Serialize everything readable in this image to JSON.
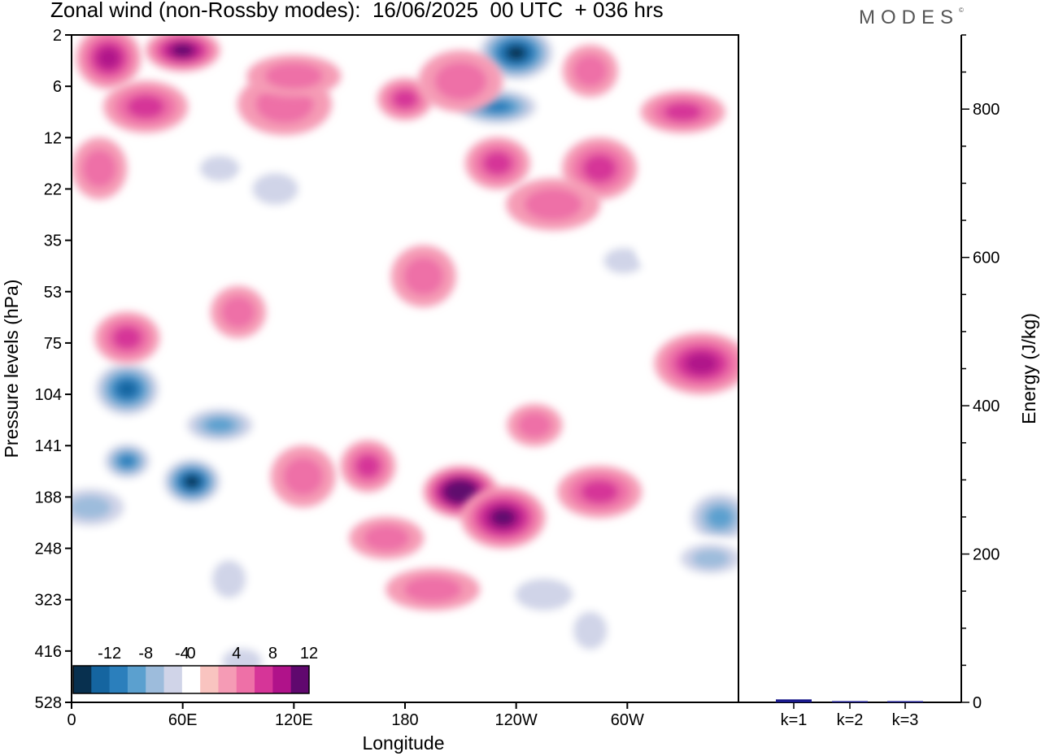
{
  "header": {
    "title": "Zonal wind (non-Rossby modes):  16/06/2025  00 UTC  + 036 hrs",
    "brand": "MODES",
    "brand_mark": "©"
  },
  "chart_data": [
    {
      "type": "heatmap",
      "xlabel": "Longitude",
      "ylabel": "Pressure levels (hPa)",
      "x_ticks": [
        "0",
        "60E",
        "120E",
        "180",
        "120W",
        "60W"
      ],
      "x_tick_values": [
        0,
        60,
        120,
        180,
        240,
        300
      ],
      "xlim": [
        0,
        360
      ],
      "y_ticks": [
        "2",
        "6",
        "12",
        "22",
        "35",
        "53",
        "75",
        "104",
        "141",
        "188",
        "248",
        "323",
        "416",
        "528"
      ],
      "colorbar": {
        "labels": [
          "-12",
          "-8",
          "-4",
          "0",
          "4",
          "8",
          "12"
        ],
        "label_values": [
          -12,
          -8,
          -4,
          0,
          4,
          8,
          12
        ],
        "levels": [
          -14,
          -12,
          -10,
          -8,
          -6,
          -4,
          -2,
          2,
          4,
          6,
          8,
          10,
          12,
          14
        ],
        "colors": [
          "#08304f",
          "#1565a0",
          "#2b7fbc",
          "#5ba0cf",
          "#9dbcdc",
          "#d0d4e8",
          "#ffffff",
          "#f9c4c0",
          "#f59bb5",
          "#ee70a7",
          "#d63598",
          "#b0128a",
          "#60086e"
        ]
      },
      "features": [
        {
          "lon": 30,
          "level_index": 8.3,
          "value": -9
        },
        {
          "lon": 65,
          "level_index": 8.7,
          "value": -13
        },
        {
          "lon": 30,
          "level_index": 6.9,
          "value": -11
        },
        {
          "lon": 80,
          "level_index": 7.6,
          "value": -7
        },
        {
          "lon": 10,
          "level_index": 9.2,
          "value": -6
        },
        {
          "lon": 85,
          "level_index": 10.6,
          "value": -4
        },
        {
          "lon": 92,
          "level_index": 12.2,
          "value": -3
        },
        {
          "lon": 210,
          "level_index": 8.9,
          "value": 13
        },
        {
          "lon": 233,
          "level_index": 9.4,
          "value": 10
        },
        {
          "lon": 195,
          "level_index": 10.8,
          "value": 4
        },
        {
          "lon": 160,
          "level_index": 8.4,
          "value": 5
        },
        {
          "lon": 125,
          "level_index": 8.6,
          "value": 4
        },
        {
          "lon": 170,
          "level_index": 9.8,
          "value": 4
        },
        {
          "lon": 285,
          "level_index": 8.9,
          "value": 6
        },
        {
          "lon": 340,
          "level_index": 6.4,
          "value": 8
        },
        {
          "lon": 250,
          "level_index": 7.6,
          "value": 4
        },
        {
          "lon": 30,
          "level_index": 5.9,
          "value": 5
        },
        {
          "lon": 350,
          "level_index": 9.4,
          "value": -8
        },
        {
          "lon": 345,
          "level_index": 10.2,
          "value": -5
        },
        {
          "lon": 255,
          "level_index": 10.9,
          "value": -4
        },
        {
          "lon": 280,
          "level_index": 11.6,
          "value": -3
        },
        {
          "lon": 298,
          "level_index": 4.4,
          "value": -3
        },
        {
          "lon": 325,
          "level_index": 4.2,
          "value": -2
        },
        {
          "lon": 240,
          "level_index": 0.35,
          "value": -13
        },
        {
          "lon": 230,
          "level_index": 1.4,
          "value": -9
        },
        {
          "lon": 280,
          "level_index": 0.7,
          "value": 4
        },
        {
          "lon": 20,
          "level_index": 0.45,
          "value": 8
        },
        {
          "lon": 60,
          "level_index": 0.3,
          "value": 9
        },
        {
          "lon": 40,
          "level_index": 1.4,
          "value": 6
        },
        {
          "lon": 115,
          "level_index": 1.35,
          "value": 4
        },
        {
          "lon": 180,
          "level_index": 1.25,
          "value": 5
        },
        {
          "lon": 230,
          "level_index": 2.5,
          "value": 5
        },
        {
          "lon": 285,
          "level_index": 2.6,
          "value": 5
        },
        {
          "lon": 330,
          "level_index": 1.5,
          "value": 5
        },
        {
          "lon": 260,
          "level_index": 3.3,
          "value": 3
        },
        {
          "lon": 15,
          "level_index": 2.6,
          "value": 3
        },
        {
          "lon": 80,
          "level_index": 2.6,
          "value": -4
        },
        {
          "lon": 110,
          "level_index": 3.0,
          "value": -3
        },
        {
          "lon": 210,
          "level_index": 0.9,
          "value": 4
        },
        {
          "lon": 120,
          "level_index": 0.8,
          "value": 3
        },
        {
          "lon": 90,
          "level_index": 5.4,
          "value": 3
        },
        {
          "lon": 190,
          "level_index": 4.7,
          "value": 3
        }
      ]
    },
    {
      "type": "bar",
      "categories": [
        "k=1",
        "k=2",
        "k=3"
      ],
      "values": [
        4,
        1.5,
        1
      ],
      "ylabel": "Energy (J/kg)",
      "ylim": [
        0,
        900
      ],
      "y_ticks": [
        0,
        200,
        400,
        600,
        800
      ],
      "bar_color": "#1a1a8c"
    }
  ]
}
